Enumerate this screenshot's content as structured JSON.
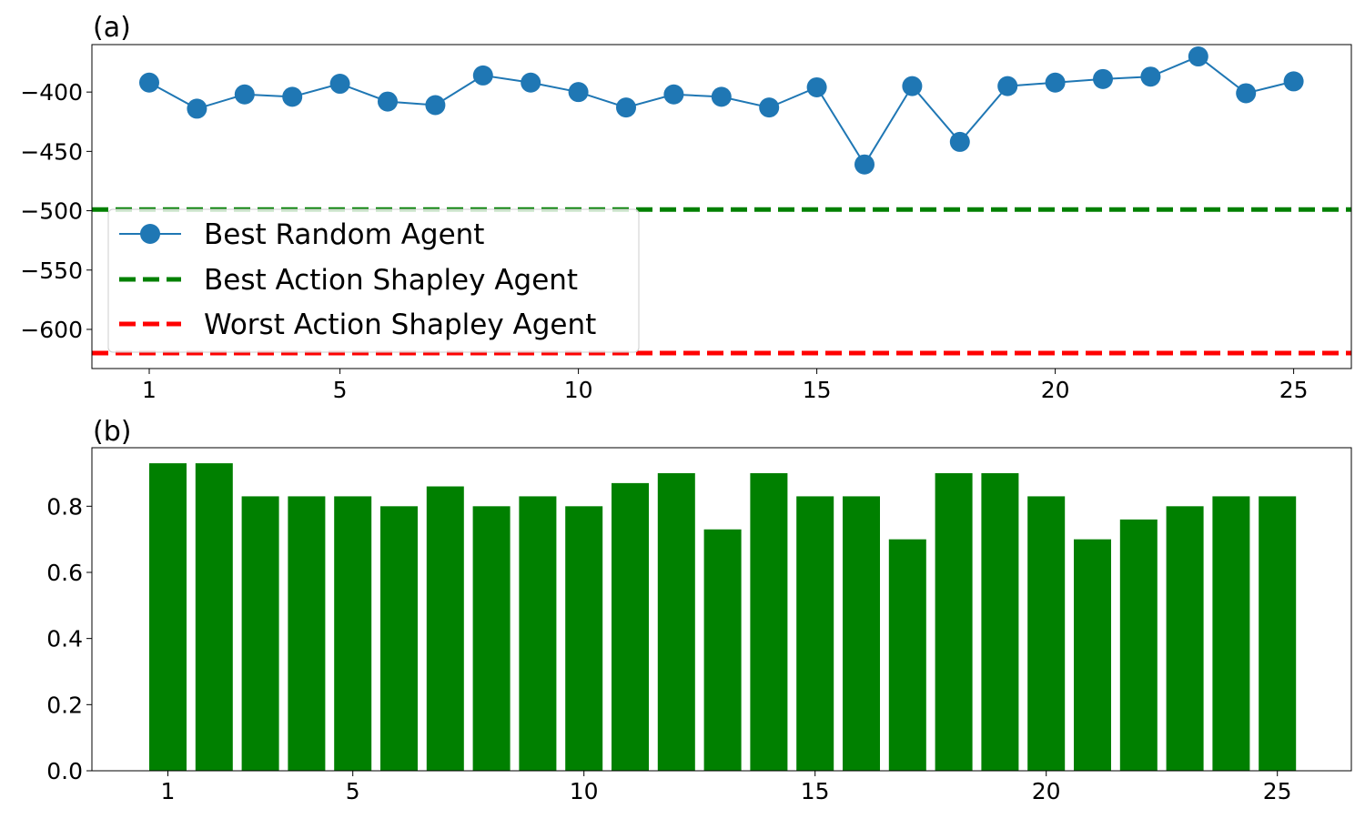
{
  "chart_data": [
    {
      "type": "line",
      "panel_label": "(a)",
      "x": [
        1,
        2,
        3,
        4,
        5,
        6,
        7,
        8,
        9,
        10,
        11,
        12,
        13,
        14,
        15,
        16,
        17,
        18,
        19,
        20,
        21,
        22,
        23,
        24,
        25
      ],
      "xticks": [
        1,
        5,
        10,
        15,
        20,
        25
      ],
      "yticks": [
        -400,
        -450,
        -500,
        -550,
        -600
      ],
      "ylim": [
        -633,
        -360
      ],
      "series": [
        {
          "name": "Best Random Agent",
          "color": "#1f77b4",
          "marker": "circle",
          "values": [
            -392,
            -414,
            -402,
            -404,
            -393,
            -408,
            -411,
            -386,
            -392,
            -400,
            -413,
            -402,
            -404,
            -413,
            -396,
            -461,
            -395,
            -442,
            -395,
            -392,
            -389,
            -387,
            -370,
            -401,
            -391
          ]
        }
      ],
      "reference_lines": [
        {
          "name": "Best Action Shapley Agent",
          "value": -499,
          "color": "#008000",
          "style": "dashed"
        },
        {
          "name": "Worst Action Shapley Agent",
          "value": -620,
          "color": "#ff0000",
          "style": "dashed"
        }
      ],
      "legend": "lower-left",
      "grid": false
    },
    {
      "type": "bar",
      "panel_label": "(b)",
      "categories": [
        1,
        2,
        3,
        4,
        5,
        6,
        7,
        8,
        9,
        10,
        11,
        12,
        13,
        14,
        15,
        16,
        17,
        18,
        19,
        20,
        21,
        22,
        23,
        24,
        25
      ],
      "values": [
        0.93,
        0.93,
        0.83,
        0.83,
        0.83,
        0.8,
        0.86,
        0.8,
        0.83,
        0.8,
        0.87,
        0.9,
        0.73,
        0.9,
        0.83,
        0.83,
        0.7,
        0.9,
        0.9,
        0.83,
        0.7,
        0.76,
        0.8,
        0.83,
        0.83
      ],
      "color": "#008000",
      "xticks": [
        1,
        5,
        10,
        15,
        20,
        25
      ],
      "yticks": [
        "0.0",
        "0.2",
        "0.4",
        "0.6",
        "0.8"
      ],
      "ylim": [
        0,
        0.977
      ],
      "grid": false
    }
  ]
}
